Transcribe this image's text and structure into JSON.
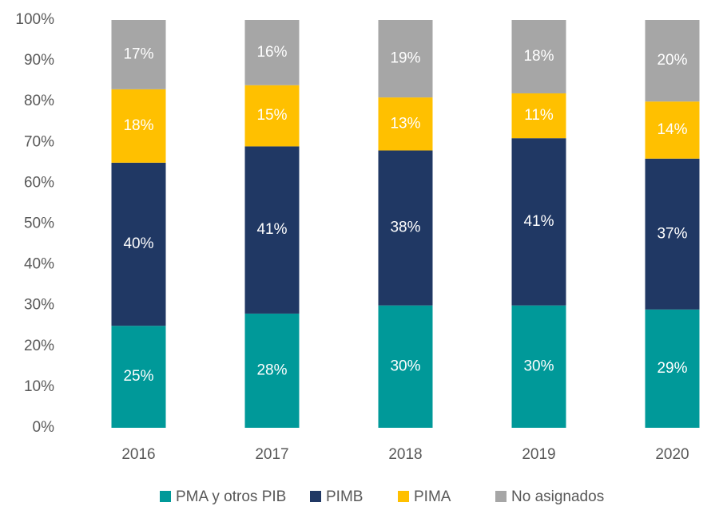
{
  "chart_data": {
    "type": "stacked_bar",
    "categories": [
      "2016",
      "2017",
      "2018",
      "2019",
      "2020"
    ],
    "series": [
      {
        "name": "PMA y otros PIB",
        "color": "#009999",
        "values": [
          25,
          28,
          30,
          30,
          29
        ],
        "value_labels": [
          "25%",
          "28%",
          "30%",
          "30%",
          "29%"
        ]
      },
      {
        "name": "PIMB",
        "color": "#203864",
        "values": [
          40,
          41,
          38,
          41,
          37
        ],
        "value_labels": [
          "40%",
          "41%",
          "38%",
          "41%",
          "37%"
        ]
      },
      {
        "name": "PIMA",
        "color": "#FFC000",
        "values": [
          18,
          15,
          13,
          11,
          14
        ],
        "value_labels": [
          "18%",
          "15%",
          "13%",
          "11%",
          "14%"
        ]
      },
      {
        "name": "No asignados",
        "color": "#A6A6A6",
        "values": [
          17,
          16,
          19,
          18,
          20
        ],
        "value_labels": [
          "17%",
          "16%",
          "19%",
          "18%",
          "20%"
        ]
      }
    ],
    "ylim": [
      0,
      100
    ],
    "yticks": [
      {
        "value": 0,
        "label": "0%"
      },
      {
        "value": 10,
        "label": "10%"
      },
      {
        "value": 20,
        "label": "20%"
      },
      {
        "value": 30,
        "label": "30%"
      },
      {
        "value": 40,
        "label": "40%"
      },
      {
        "value": 50,
        "label": "50%"
      },
      {
        "value": 60,
        "label": "60%"
      },
      {
        "value": 70,
        "label": "70%"
      },
      {
        "value": 80,
        "label": "80%"
      },
      {
        "value": 90,
        "label": "90%"
      },
      {
        "value": 100,
        "label": "100%"
      }
    ],
    "legend": "bottom",
    "grid": false
  }
}
